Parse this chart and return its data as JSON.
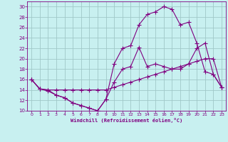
{
  "xlabel": "Windchill (Refroidissement éolien,°C)",
  "bg_color": "#c8f0f0",
  "grid_color": "#a0c8c8",
  "line_color": "#800080",
  "xlim": [
    -0.5,
    23.5
  ],
  "ylim": [
    10,
    31
  ],
  "xticks": [
    0,
    1,
    2,
    3,
    4,
    5,
    6,
    7,
    8,
    9,
    10,
    11,
    12,
    13,
    14,
    15,
    16,
    17,
    18,
    19,
    20,
    21,
    22,
    23
  ],
  "yticks": [
    10,
    12,
    14,
    16,
    18,
    20,
    22,
    24,
    26,
    28,
    30
  ],
  "line1_x": [
    0,
    1,
    2,
    3,
    4,
    5,
    6,
    7,
    8,
    9,
    10,
    11,
    12,
    13,
    14,
    15,
    16,
    17,
    18,
    19,
    20,
    21,
    22,
    23
  ],
  "line1_y": [
    16,
    14.2,
    13.8,
    13,
    12.5,
    11.5,
    11.0,
    10.5,
    10.0,
    12.2,
    15.5,
    18.0,
    18.5,
    22.2,
    18.5,
    19.0,
    18.5,
    18.0,
    18.0,
    19.0,
    22.0,
    23.0,
    17.0,
    14.5
  ],
  "line2_x": [
    0,
    1,
    2,
    3,
    4,
    5,
    6,
    7,
    8,
    9,
    10,
    11,
    12,
    13,
    14,
    15,
    16,
    17,
    18,
    19,
    20,
    21,
    22,
    23
  ],
  "line2_y": [
    16,
    14.2,
    14.0,
    14.0,
    14.0,
    14.0,
    14.0,
    14.0,
    14.0,
    14.0,
    14.5,
    15.0,
    15.5,
    16.0,
    16.5,
    17.0,
    17.5,
    18.0,
    18.5,
    19.0,
    19.5,
    20.0,
    20.0,
    14.5
  ],
  "line3_x": [
    0,
    1,
    2,
    3,
    4,
    5,
    6,
    7,
    8,
    9,
    10,
    11,
    12,
    13,
    14,
    15,
    16,
    17,
    18,
    19,
    20,
    21,
    22,
    23
  ],
  "line3_y": [
    16,
    14.2,
    14.0,
    13.0,
    12.5,
    11.5,
    11.0,
    10.5,
    10.0,
    12.2,
    19.0,
    22.0,
    22.5,
    26.5,
    28.5,
    29.0,
    30.0,
    29.5,
    26.5,
    27.0,
    23.0,
    17.5,
    17.0,
    14.5
  ]
}
